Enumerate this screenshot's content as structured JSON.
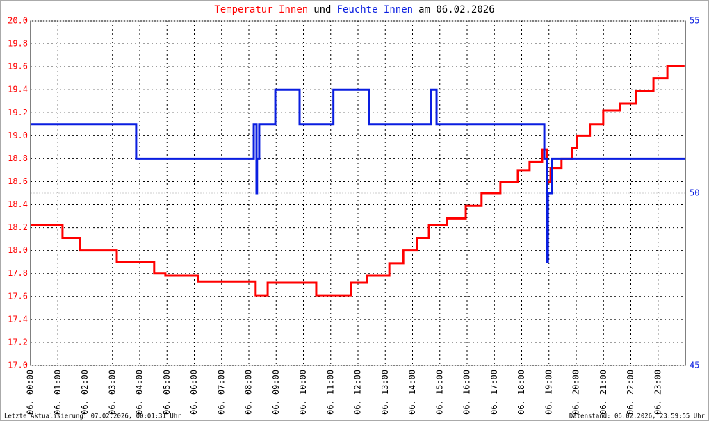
{
  "chart_data": {
    "type": "line",
    "title": [
      "Temperatur Innen",
      "und",
      "Feuchte Innen",
      "am 06.02.2026"
    ],
    "footer_left": "Letzte Aktualisierung: 07.02.2026, 00:01:31 Uhr",
    "footer_right": "Datenstand: 06.02.2026, 23:59:55 Uhr",
    "xlim": [
      0,
      24
    ],
    "xticks": [
      {
        "value": 0,
        "label": "06. 00:00"
      },
      {
        "value": 1,
        "label": "06. 01:00"
      },
      {
        "value": 2,
        "label": "06. 02:00"
      },
      {
        "value": 3,
        "label": "06. 03:00"
      },
      {
        "value": 4,
        "label": "06. 04:00"
      },
      {
        "value": 5,
        "label": "06. 05:00"
      },
      {
        "value": 6,
        "label": "06. 06:00"
      },
      {
        "value": 7,
        "label": "06. 07:00"
      },
      {
        "value": 8,
        "label": "06. 08:00"
      },
      {
        "value": 9,
        "label": "06. 09:00"
      },
      {
        "value": 10,
        "label": "06. 10:00"
      },
      {
        "value": 11,
        "label": "06. 11:00"
      },
      {
        "value": 12,
        "label": "06. 12:00"
      },
      {
        "value": 13,
        "label": "06. 13:00"
      },
      {
        "value": 14,
        "label": "06. 14:00"
      },
      {
        "value": 15,
        "label": "06. 15:00"
      },
      {
        "value": 16,
        "label": "06. 16:00"
      },
      {
        "value": 17,
        "label": "06. 17:00"
      },
      {
        "value": 18,
        "label": "06. 18:00"
      },
      {
        "value": 19,
        "label": "06. 19:00"
      },
      {
        "value": 20,
        "label": "06. 20:00"
      },
      {
        "value": 21,
        "label": "06. 21:00"
      },
      {
        "value": 22,
        "label": "06. 22:00"
      },
      {
        "value": 23,
        "label": "06. 23:00"
      }
    ],
    "ylim": [
      17.0,
      20.0
    ],
    "yticks": [
      {
        "value": 17.0,
        "label": "17.0"
      },
      {
        "value": 17.2,
        "label": "17.2"
      },
      {
        "value": 17.4,
        "label": "17.4"
      },
      {
        "value": 17.6,
        "label": "17.6"
      },
      {
        "value": 17.8,
        "label": "17.8"
      },
      {
        "value": 18.0,
        "label": "18.0"
      },
      {
        "value": 18.2,
        "label": "18.2"
      },
      {
        "value": 18.4,
        "label": "18.4"
      },
      {
        "value": 18.6,
        "label": "18.6"
      },
      {
        "value": 18.8,
        "label": "18.8"
      },
      {
        "value": 19.0,
        "label": "19.0"
      },
      {
        "value": 19.2,
        "label": "19.2"
      },
      {
        "value": 19.4,
        "label": "19.4"
      },
      {
        "value": 19.6,
        "label": "19.6"
      },
      {
        "value": 19.8,
        "label": "19.8"
      },
      {
        "value": 20.0,
        "label": "20.0"
      }
    ],
    "y2lim": [
      45,
      55
    ],
    "y2ticks": [
      45,
      50,
      55
    ],
    "grid": true,
    "series": [
      {
        "name": "Temperatur Innen",
        "color": "#ff0000",
        "x": [
          0,
          1.17,
          1.17,
          1.8,
          1.8,
          3.16,
          3.16,
          4.53,
          4.53,
          4.94,
          4.94,
          6.14,
          6.14,
          8.25,
          8.25,
          8.69,
          8.69,
          10.47,
          10.47,
          11.75,
          11.75,
          12.33,
          12.33,
          13.15,
          13.15,
          13.66,
          13.66,
          14.17,
          14.17,
          14.6,
          14.6,
          15.26,
          15.26,
          15.95,
          15.95,
          16.53,
          16.53,
          17.22,
          17.22,
          17.86,
          17.86,
          18.29,
          18.29,
          18.75,
          18.75,
          18.93,
          18.93,
          19.06,
          19.06,
          19.46,
          19.46,
          19.85,
          19.85,
          20.03,
          20.03,
          20.5,
          20.5,
          20.99,
          20.99,
          21.6,
          21.6,
          22.19,
          22.19,
          22.83,
          22.83,
          23.34,
          23.34,
          23.97
        ],
        "values": [
          18.22,
          18.22,
          18.11,
          18.11,
          18.0,
          18.0,
          17.9,
          17.9,
          17.8,
          17.8,
          17.78,
          17.78,
          17.73,
          17.73,
          17.61,
          17.61,
          17.72,
          17.72,
          17.61,
          17.61,
          17.72,
          17.72,
          17.78,
          17.78,
          17.89,
          17.89,
          18.0,
          18.0,
          18.11,
          18.11,
          18.22,
          18.22,
          18.28,
          18.28,
          18.39,
          18.39,
          18.5,
          18.5,
          18.6,
          18.6,
          18.7,
          18.7,
          18.77,
          18.77,
          18.88,
          18.88,
          18.6,
          18.6,
          18.72,
          18.72,
          18.8,
          18.8,
          18.89,
          18.89,
          19.0,
          19.0,
          19.1,
          19.1,
          19.22,
          19.22,
          19.28,
          19.28,
          19.39,
          19.39,
          19.5,
          19.5,
          19.61,
          19.61
        ]
      },
      {
        "name": "Feuchte Innen",
        "color": "#0a1ee0",
        "axis": "y2",
        "x": [
          0,
          3.87,
          3.87,
          8.18,
          8.18,
          8.28,
          8.28,
          8.3,
          8.3,
          8.38,
          8.38,
          8.97,
          8.97,
          9.86,
          9.86,
          11.1,
          11.1,
          12.41,
          12.41,
          14.68,
          14.68,
          14.88,
          14.88,
          18.83,
          18.83,
          18.93,
          18.93,
          18.96,
          18.96,
          19.1,
          19.1,
          24
        ],
        "values": [
          52,
          52,
          51,
          51,
          52,
          52,
          50,
          50,
          51,
          51,
          52,
          52,
          53,
          53,
          52,
          52,
          53,
          53,
          52,
          52,
          53,
          53,
          52,
          52,
          51,
          51,
          48,
          48,
          50,
          50,
          51,
          51
        ]
      }
    ]
  }
}
